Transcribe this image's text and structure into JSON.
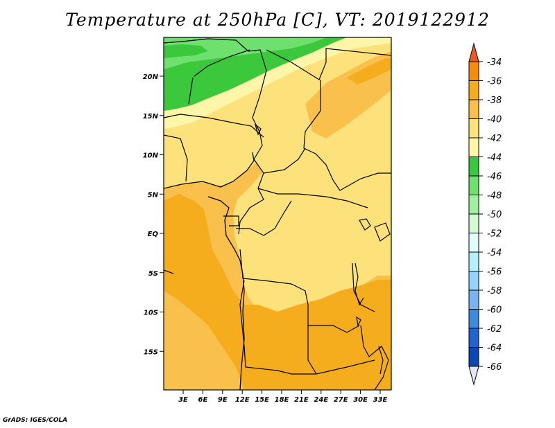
{
  "title": "Temperature at 250hPa [C], VT: 2019122912",
  "credit": "GrADS: IGES/COLA",
  "axes": {
    "lat_labels": [
      "20N",
      "15N",
      "10N",
      "5N",
      "EQ",
      "5S",
      "10S",
      "15S"
    ],
    "lon_labels": [
      "3E",
      "6E",
      "9E",
      "12E",
      "15E",
      "18E",
      "21E",
      "24E",
      "27E",
      "30E",
      "33E"
    ]
  },
  "colorbar": {
    "labels": [
      "-34",
      "-36",
      "-38",
      "-40",
      "-42",
      "-44",
      "-46",
      "-48",
      "-50",
      "-52",
      "-54",
      "-56",
      "-58",
      "-60",
      "-62",
      "-64",
      "-66"
    ],
    "colors": [
      "#f05a1e",
      "#f58c0a",
      "#f5ad1e",
      "#f9c04c",
      "#fde27c",
      "#fdf5a8",
      "#3cc83c",
      "#6ee06e",
      "#a0f0a0",
      "#d2fad2",
      "#e1fafa",
      "#b4f0fa",
      "#96d2fa",
      "#78b4f0",
      "#3c8cdc",
      "#1e64d2",
      "#0a46b4",
      "#1e3c8c",
      "#0a0a64",
      "#e6e6fa"
    ]
  },
  "chart_data": {
    "type": "heatmap",
    "title": "Temperature at 250hPa [C], VT: 2019122912",
    "x_range_deg_e": [
      0,
      34
    ],
    "y_range_deg": [
      -20,
      24
    ],
    "contour_levels": [
      -34,
      -36,
      -38,
      -40,
      -42,
      -44,
      -46,
      -48,
      -50,
      -52,
      -54,
      -56,
      -58,
      -60,
      -62,
      -64,
      -66
    ],
    "fill_colors": {
      "-44_to_-46": "#3cc83c",
      "-46_to_-48": "#6ee06e",
      "-42_to_-44": "#fdf5a8",
      "-40_to_-42": "#fde27c",
      "-38_to_-40": "#f9c04c",
      "-36_to_-38": "#f5ad1e",
      "-34_to_-36": "#f58c0a"
    }
  }
}
